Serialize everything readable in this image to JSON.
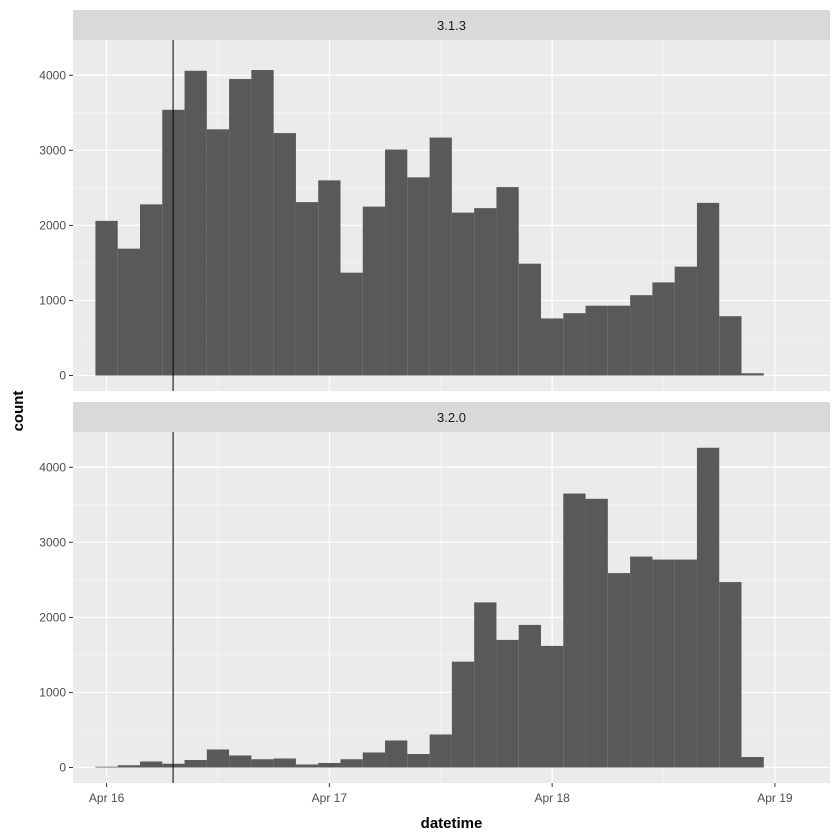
{
  "chart_data": {
    "type": "bar",
    "xlabel": "datetime",
    "ylabel": "count",
    "x_ticks": [
      "Apr 16",
      "Apr 17",
      "Apr 18",
      "Apr 19"
    ],
    "y_ticks": [
      0,
      1000,
      2000,
      3000,
      4000
    ],
    "ylim": [
      0,
      4470
    ],
    "xlim": [
      "Apr 15 20:23",
      "Apr 19 05:56"
    ],
    "grid": true,
    "reference_line_x": "Apr 16 07:10",
    "bin_width_hours": 2.4,
    "bin_starts": [
      "Apr 15 22:48",
      "Apr 16 01:12",
      "Apr 16 03:36",
      "Apr 16 06:00",
      "Apr 16 08:24",
      "Apr 16 10:48",
      "Apr 16 13:12",
      "Apr 16 15:36",
      "Apr 16 18:00",
      "Apr 16 20:24",
      "Apr 16 22:48",
      "Apr 17 01:12",
      "Apr 17 03:36",
      "Apr 17 06:00",
      "Apr 17 08:24",
      "Apr 17 10:48",
      "Apr 17 13:12",
      "Apr 17 15:36",
      "Apr 17 18:00",
      "Apr 17 20:24",
      "Apr 17 22:48",
      "Apr 18 01:12",
      "Apr 18 03:36",
      "Apr 18 06:00",
      "Apr 18 08:24",
      "Apr 18 10:48",
      "Apr 18 13:12",
      "Apr 18 15:36",
      "Apr 18 18:00",
      "Apr 18 20:24",
      "Apr 18 22:48"
    ],
    "bar_color": "#595959",
    "panels": [
      {
        "strip_label": "3.1.3",
        "values": [
          2060,
          1690,
          2280,
          3540,
          4060,
          3280,
          3950,
          4070,
          3230,
          2310,
          2600,
          1370,
          2250,
          3010,
          2640,
          3170,
          2170,
          2230,
          2510,
          1490,
          760,
          830,
          930,
          930,
          1070,
          1240,
          1450,
          2300,
          790,
          30,
          0
        ]
      },
      {
        "strip_label": "3.2.0",
        "values": [
          10,
          30,
          80,
          50,
          100,
          240,
          160,
          110,
          120,
          40,
          60,
          110,
          200,
          360,
          180,
          440,
          1410,
          2200,
          1700,
          1900,
          1620,
          3650,
          3580,
          2590,
          2810,
          2770,
          2770,
          4260,
          2470,
          140,
          0
        ]
      }
    ]
  }
}
